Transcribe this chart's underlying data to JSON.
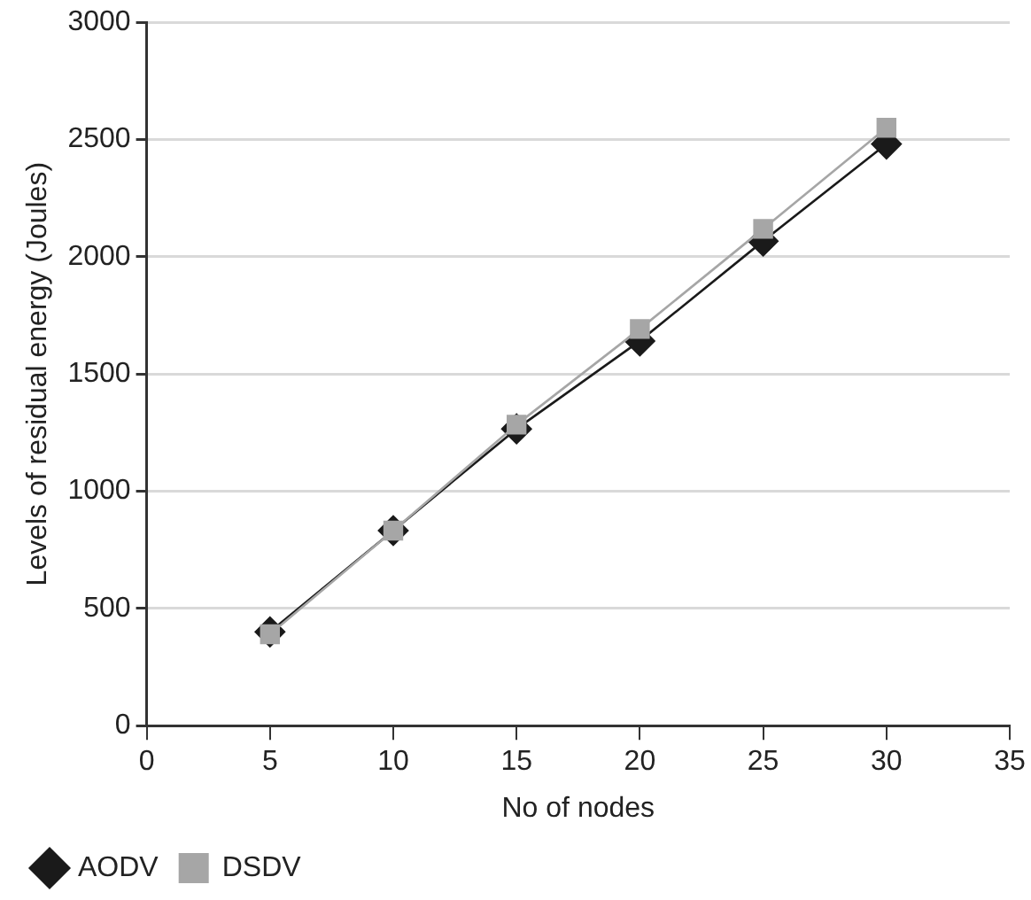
{
  "chart_data": {
    "type": "line",
    "xlabel": "No of nodes",
    "ylabel": "Levels of residual energy (Joules)",
    "x": [
      5,
      10,
      15,
      20,
      25,
      30
    ],
    "series": [
      {
        "name": "AODV",
        "color": "#1a1a1a",
        "marker": "diamond",
        "values": [
          400,
          832,
          1266,
          1641,
          2067,
          2481
        ]
      },
      {
        "name": "DSDV",
        "color": "#a6a6a6",
        "marker": "square",
        "values": [
          390,
          832,
          1284,
          1692,
          2119,
          2550
        ]
      }
    ],
    "xlim": [
      0,
      35
    ],
    "xticks": [
      0,
      5,
      10,
      15,
      20,
      25,
      30,
      35
    ],
    "ylim": [
      0,
      3000
    ],
    "yticks": [
      0,
      500,
      1000,
      1500,
      2000,
      2500,
      3000
    ],
    "grid": "y",
    "legend": "bottom left",
    "line_style": "solid"
  }
}
